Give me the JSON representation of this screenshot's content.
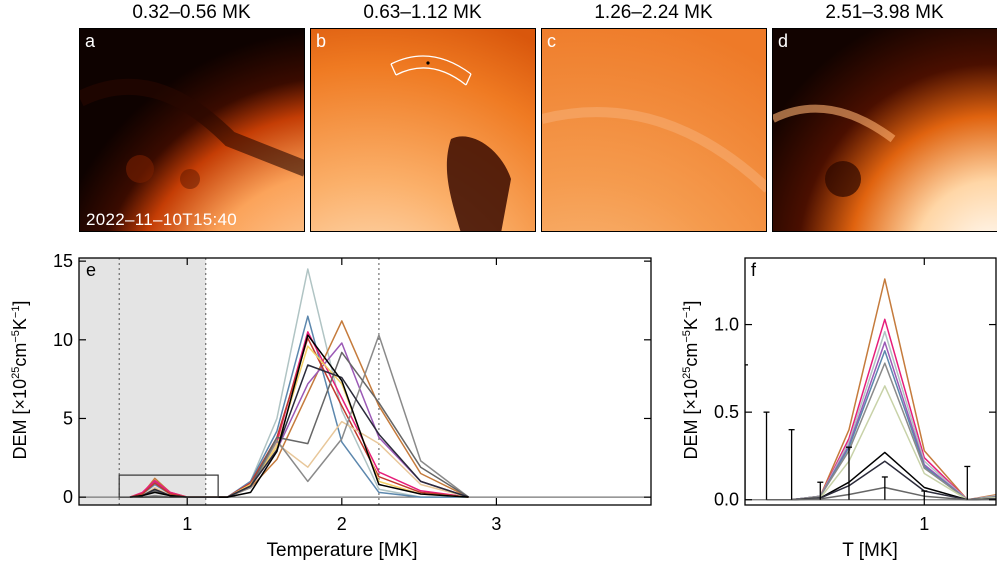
{
  "image_panels": [
    {
      "title": "0.32–0.56 MK",
      "label": "a",
      "timestamp": "2022–11–10T15:40"
    },
    {
      "title": "0.63–1.12 MK",
      "label": "b",
      "timestamp": ""
    },
    {
      "title": "1.26–2.24 MK",
      "label": "c",
      "timestamp": ""
    },
    {
      "title": "2.51–3.98 MK",
      "label": "d",
      "timestamp": ""
    }
  ],
  "colors": {
    "solar_dark": "#1a0500",
    "solar_mid": "#d04a0a",
    "solar_bright": "#ffe9c8",
    "shade": "#e4e4e4"
  },
  "chart_data": [
    {
      "type": "line",
      "panel_label": "e",
      "xlabel": "Temperature [MK]",
      "ylabel": "DEM [×10²⁵cm⁻⁵K⁻¹]",
      "ylabel_parts": {
        "prefix": "DEM [×10",
        "exp1": "25",
        "mid": "cm",
        "exp2": "−5",
        "unit": "K",
        "exp3": "−1",
        "suffix": "]"
      },
      "xlim": [
        0.3,
        4.0
      ],
      "ylim": [
        -0.5,
        15.2
      ],
      "x_ticks": [
        1,
        2,
        3
      ],
      "x_tick_labels": [
        "1",
        "2",
        "3"
      ],
      "y_ticks": [
        0,
        5,
        10,
        15
      ],
      "y_tick_labels": [
        "0",
        "5",
        "10",
        "15"
      ],
      "shaded_range": [
        0.3,
        1.12
      ],
      "dotted_lines": [
        0.56,
        1.12,
        2.24
      ],
      "zoom_box": {
        "x": [
          0.56,
          1.2
        ],
        "y": [
          0,
          1.4
        ]
      },
      "x": [
        0.63,
        0.71,
        0.79,
        0.89,
        1.0,
        1.12,
        1.26,
        1.41,
        1.58,
        1.78,
        2.0,
        2.24,
        2.51,
        2.82
      ],
      "series": [
        {
          "color": "#b0c4c4",
          "values": [
            0,
            0.1,
            0.5,
            0.1,
            0,
            0,
            0,
            1,
            5,
            14.5,
            5.5,
            0.5,
            0,
            0
          ]
        },
        {
          "color": "#5c87ad",
          "values": [
            0,
            0.2,
            0.8,
            0.2,
            0,
            0,
            0,
            1,
            4.2,
            11.5,
            3.5,
            0.3,
            0,
            0
          ]
        },
        {
          "color": "#c57b3c",
          "values": [
            0,
            0.2,
            1.2,
            0.3,
            0,
            0,
            0,
            0.6,
            2.4,
            6.6,
            11.2,
            5.8,
            1.5,
            0
          ]
        },
        {
          "color": "#9b59b6",
          "values": [
            0,
            0.2,
            1.0,
            0.2,
            0,
            0,
            0,
            0.7,
            3.0,
            7.2,
            9.8,
            3.8,
            1.0,
            0
          ]
        },
        {
          "color": "#e61e7a",
          "values": [
            0,
            0.3,
            1.05,
            0.3,
            0,
            0,
            0,
            0.9,
            3.5,
            10.5,
            6.3,
            1.6,
            0.4,
            0
          ]
        },
        {
          "color": "#c0392b",
          "values": [
            0,
            0.2,
            0.9,
            0.2,
            0,
            0,
            0,
            0.9,
            3.8,
            10.1,
            5.8,
            1.3,
            0.3,
            0
          ]
        },
        {
          "color": "#e8c79a",
          "values": [
            0,
            0.1,
            0.6,
            0.1,
            0,
            0,
            0,
            0.6,
            3.4,
            1.9,
            4.8,
            3.4,
            0.8,
            0
          ]
        },
        {
          "color": "#f2d066",
          "values": [
            0,
            0.1,
            0.5,
            0.1,
            0,
            0,
            0,
            0.8,
            3.2,
            9.6,
            7.2,
            1.0,
            0.2,
            0
          ]
        },
        {
          "color": "#8a8a8a",
          "values": [
            0,
            0,
            0.1,
            0,
            0,
            0,
            0,
            0.6,
            3.6,
            1.0,
            3.7,
            10.3,
            2.3,
            0
          ]
        },
        {
          "color": "#666666",
          "values": [
            0,
            0.1,
            0.4,
            0.1,
            0,
            0,
            0,
            0.7,
            3.8,
            3.4,
            9.2,
            6.0,
            1.9,
            0
          ]
        },
        {
          "color": "#2b2b3a",
          "values": [
            0,
            0.1,
            0.5,
            0.1,
            0,
            0,
            0,
            0.7,
            3.0,
            8.4,
            7.6,
            4.0,
            1.0,
            0
          ]
        },
        {
          "color": "#000000",
          "values": [
            0,
            0.1,
            0.3,
            0.1,
            0,
            0,
            0,
            0.3,
            2.9,
            10.3,
            7.4,
            0.8,
            0.2,
            0
          ]
        }
      ]
    },
    {
      "type": "line",
      "panel_label": "f",
      "xlabel": "T [MK]",
      "ylabel": "DEM [×10²⁵cm⁻⁵K⁻¹]",
      "ylabel_parts": {
        "prefix": "DEM [×10",
        "exp1": "25",
        "mid": "cm",
        "exp2": "−5",
        "unit": "K",
        "exp3": "−1",
        "suffix": "]"
      },
      "xlim": [
        0.5,
        1.2
      ],
      "ylim": [
        -0.03,
        1.38
      ],
      "x_ticks": [
        1
      ],
      "x_tick_labels": [
        "1"
      ],
      "y_ticks": [
        0,
        0.5,
        1.0
      ],
      "y_tick_labels": [
        "0.0",
        "0.5",
        "1.0"
      ],
      "x": [
        0.56,
        0.63,
        0.71,
        0.79,
        0.89,
        1.0,
        1.12,
        1.26
      ],
      "series": [
        {
          "color": "#c57b3c",
          "values": [
            0,
            0,
            0.02,
            0.4,
            1.26,
            0.28,
            0,
            0.05
          ]
        },
        {
          "color": "#e61e7a",
          "values": [
            0,
            0,
            0.02,
            0.35,
            1.03,
            0.24,
            0,
            0.04
          ]
        },
        {
          "color": "#b0c4c4",
          "values": [
            0,
            0,
            0.02,
            0.33,
            0.96,
            0.22,
            0,
            0.04
          ]
        },
        {
          "color": "#9b59b6",
          "values": [
            0,
            0,
            0.02,
            0.31,
            0.9,
            0.2,
            0,
            0.03
          ]
        },
        {
          "color": "#5c87ad",
          "values": [
            0,
            0,
            0.02,
            0.3,
            0.85,
            0.19,
            0,
            0.03
          ]
        },
        {
          "color": "#8a8a8a",
          "values": [
            0,
            0,
            0.02,
            0.28,
            0.78,
            0.18,
            0,
            0.03
          ]
        },
        {
          "color": "#c8d2a8",
          "values": [
            0,
            0,
            0.01,
            0.22,
            0.65,
            0.15,
            0,
            0.02
          ]
        },
        {
          "color": "#000000",
          "values": [
            0,
            0,
            0.01,
            0.1,
            0.27,
            0.07,
            0,
            0.01
          ]
        },
        {
          "color": "#2b2b3a",
          "values": [
            0,
            0,
            0.01,
            0.08,
            0.22,
            0.05,
            0,
            0.01
          ]
        },
        {
          "color": "#666666",
          "values": [
            0,
            0,
            0.005,
            0.03,
            0.07,
            0.02,
            0,
            0.005
          ]
        }
      ],
      "error_bars": {
        "x": [
          0.5,
          0.56,
          0.63,
          0.71,
          0.79,
          0.89,
          1.0,
          1.12
        ],
        "upper": [
          0.77,
          0.5,
          0.4,
          0.1,
          0.3,
          0.13,
          0.05,
          0.19
        ]
      }
    }
  ]
}
